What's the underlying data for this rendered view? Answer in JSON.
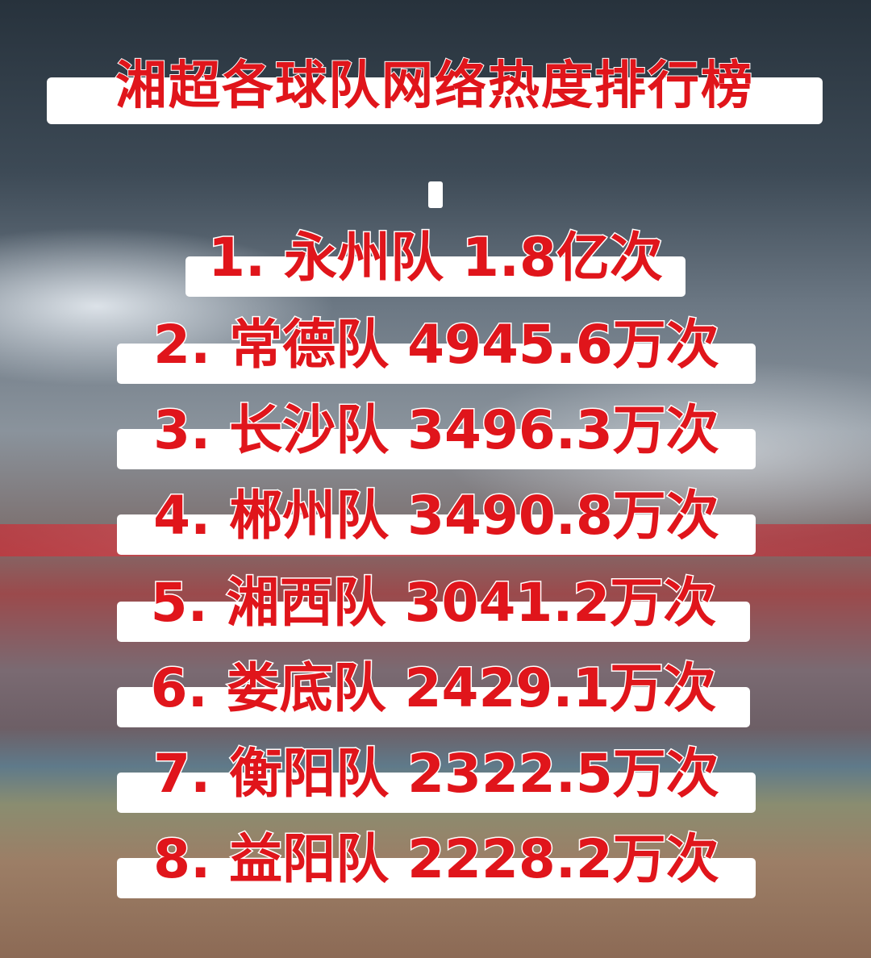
{
  "title": "湘超各球队网络热度排行榜",
  "ranking": [
    {
      "text": "1. 永州队  1.8亿次"
    },
    {
      "text": "2. 常德队  4945.6万次"
    },
    {
      "text": "3. 长沙队  3496.3万次"
    },
    {
      "text": "4. 郴州队  3490.8万次"
    },
    {
      "text": "5. 湘西队  3041.2万次"
    },
    {
      "text": "6. 娄底队  2429.1万次"
    },
    {
      "text": "7. 衡阳队  2322.5万次"
    },
    {
      "text": "8. 益阳队  2228.2万次"
    }
  ],
  "colors": {
    "text": "#e0151b",
    "strip": "#ffffff"
  }
}
